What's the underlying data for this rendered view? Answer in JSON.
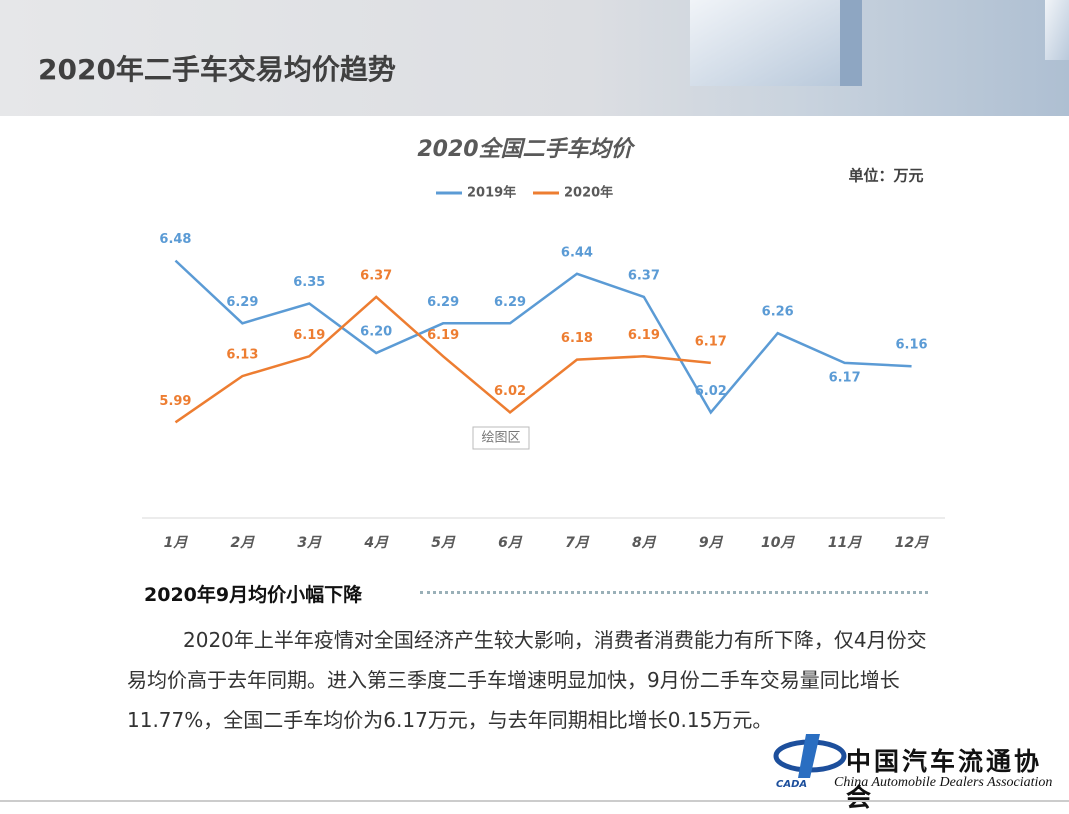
{
  "header": {
    "title": "2020年二手车交易均价趋势"
  },
  "chart_data": {
    "type": "line",
    "title": "2020全国二手车均价",
    "unit": "单位：万元",
    "plot_area_label": "绘图区",
    "categories": [
      "1月",
      "2月",
      "3月",
      "4月",
      "5月",
      "6月",
      "7月",
      "8月",
      "9月",
      "10月",
      "11月",
      "12月"
    ],
    "series": [
      {
        "name": "2019年",
        "color": "#5b9bd5",
        "values": [
          6.48,
          6.29,
          6.35,
          6.2,
          6.29,
          6.29,
          6.44,
          6.37,
          6.02,
          6.26,
          6.17,
          6.16
        ],
        "value_labels": [
          "6.48",
          "6.29",
          "6.35",
          "6.20",
          "6.29",
          "6.29",
          "6.44",
          "6.37",
          "6.02",
          "6.26",
          "6.17",
          "6.16"
        ]
      },
      {
        "name": "2020年",
        "color": "#ed7d31",
        "values": [
          5.99,
          6.13,
          6.19,
          6.37,
          6.19,
          6.02,
          6.18,
          6.19,
          6.17,
          null,
          null,
          null
        ],
        "value_labels": [
          "5.99",
          "6.13",
          "6.19",
          "6.37",
          "6.19",
          "6.02",
          "6.18",
          "6.19",
          "6.17",
          null,
          null,
          null
        ]
      }
    ],
    "ylim": [
      5.7,
      6.6
    ],
    "grid": false,
    "legend": "top"
  },
  "section": {
    "heading": "2020年9月均价小幅下降",
    "paragraph": "2020年上半年疫情对全国经济产生较大影响，消费者消费能力有所下降，仅4月份交易均价高于去年同期。进入第三季度二手车增速明显加快，9月份二手车交易量同比增长11.77%，全国二手车均价为6.17万元，与去年同期相比增长0.15万元。"
  },
  "logo": {
    "name": "中国汽车流通协会",
    "english": "China Automobile Dealers Association",
    "abbr": "CADA"
  }
}
